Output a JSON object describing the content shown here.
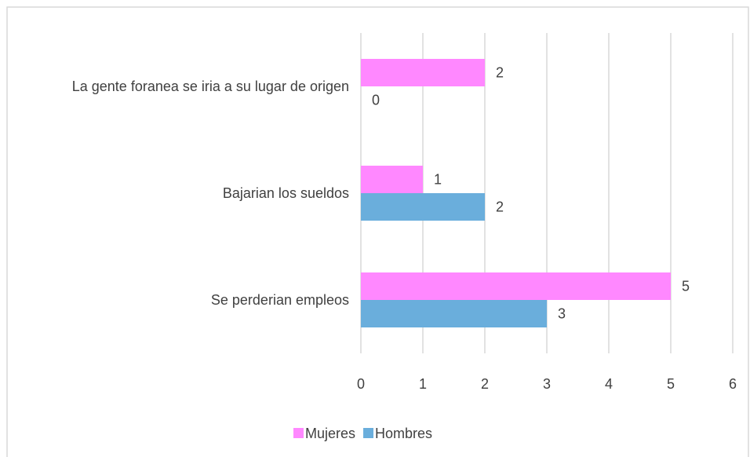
{
  "chart_data": {
    "type": "hbar",
    "categories": [
      "La gente foranea se iria a su lugar de origen",
      "Bajarian los sueldos",
      "Se perderian empleos"
    ],
    "series": [
      {
        "name": "Mujeres",
        "color": "#ff88ff",
        "values": [
          2,
          1,
          5
        ]
      },
      {
        "name": "Hombres",
        "color": "#6aaedc",
        "values": [
          0,
          2,
          3
        ]
      }
    ],
    "xlim": [
      0,
      6
    ],
    "xticks": [
      0,
      1,
      2,
      3,
      4,
      5,
      6
    ],
    "grid": true,
    "legend": "bottom"
  }
}
